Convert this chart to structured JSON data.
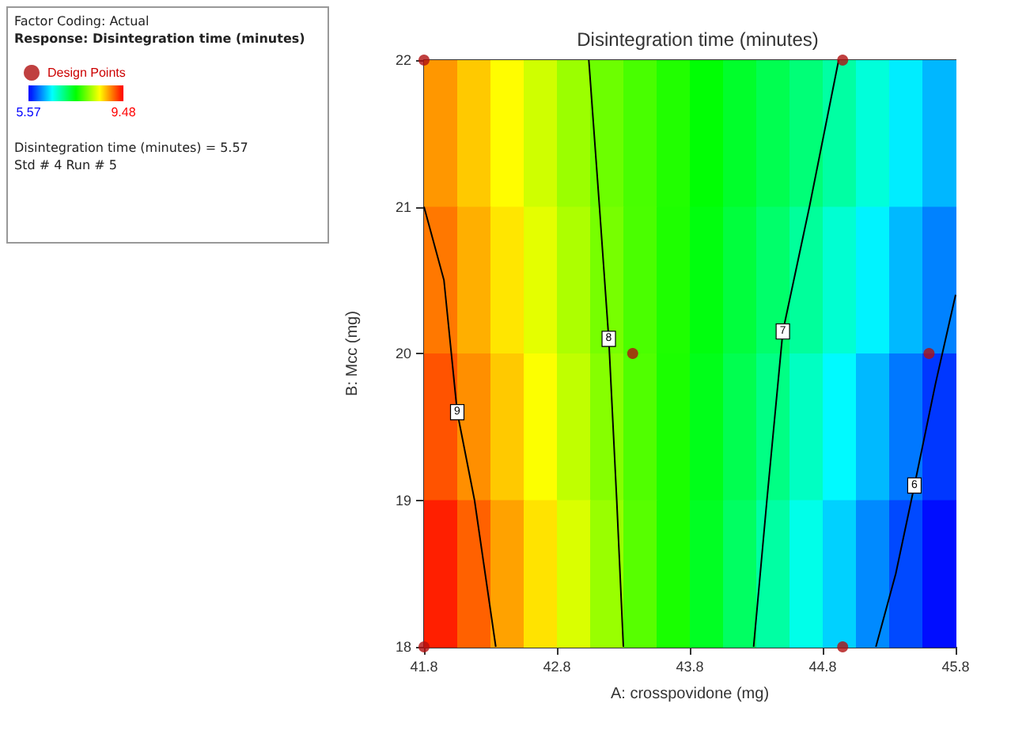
{
  "chart_data": {
    "type": "heatmap",
    "title": "Disintegration time (minutes)",
    "xlabel": "A: crosspovidone (mg)",
    "ylabel": "B: Mcc (mg)",
    "subtitle": "Factor Coding: Actual",
    "legend_title": "Response: Disintegration time (minutes)",
    "xlim": [
      41.8,
      45.8
    ],
    "xticks": [
      41.8,
      42.8,
      43.8,
      44.8,
      45.8
    ],
    "ylim": [
      18,
      22
    ],
    "yticks": [
      18,
      19,
      20,
      21,
      22
    ],
    "clim": [
      5.57,
      9.48
    ],
    "cticks": [
      5.57,
      9.48
    ],
    "cells": [
      [
        8.9,
        8.71,
        8.51,
        8.32,
        8.12,
        7.94,
        7.8,
        7.65,
        7.51,
        7.36,
        7.22,
        7.07,
        6.9,
        6.69,
        6.48,
        6.27
      ],
      [
        9.02,
        8.81,
        8.6,
        8.4,
        8.19,
        7.98,
        7.81,
        7.64,
        7.47,
        7.29,
        7.12,
        6.93,
        6.72,
        6.5,
        6.28,
        6.07
      ],
      [
        9.16,
        8.93,
        8.71,
        8.49,
        8.26,
        8.04,
        7.83,
        7.63,
        7.43,
        7.22,
        7.02,
        6.78,
        6.53,
        6.28,
        6.03,
        5.78
      ],
      [
        9.36,
        9.11,
        8.86,
        8.61,
        8.36,
        8.11,
        7.86,
        7.62,
        7.39,
        7.15,
        6.9,
        6.63,
        6.37,
        6.1,
        5.85,
        5.62
      ]
    ],
    "series": [
      {
        "name": "9",
        "type": "line",
        "color": "#000000",
        "x": [
          41.8,
          41.95,
          42.05,
          42.18,
          42.34
        ],
        "values": [
          21.0,
          20.5,
          19.6,
          19.0,
          18.0
        ]
      },
      {
        "name": "8",
        "type": "line",
        "color": "#000000",
        "x": [
          43.04,
          43.12,
          43.19,
          43.25,
          43.3
        ],
        "values": [
          22.0,
          21.0,
          20.1,
          19.0,
          18.0
        ]
      },
      {
        "name": "7",
        "type": "line",
        "color": "#000000",
        "x": [
          44.92,
          44.7,
          44.5,
          44.38,
          44.28
        ],
        "values": [
          22.0,
          21.0,
          20.15,
          19.0,
          18.0
        ]
      },
      {
        "name": "6",
        "type": "line",
        "color": "#000000",
        "x": [
          45.8,
          45.65,
          45.49,
          45.35,
          45.2
        ],
        "values": [
          20.4,
          19.8,
          19.1,
          18.5,
          18.0
        ]
      },
      {
        "name": "Design Points",
        "type": "scatter",
        "color": "#b01010",
        "x": [
          41.8,
          41.8,
          44.95,
          44.95,
          43.37,
          45.6
        ],
        "values": [
          22,
          18,
          22,
          18,
          20,
          20
        ]
      }
    ],
    "legend": "top left",
    "grid": false,
    "annotations": [
      "Disintegration time (minutes) = 5.57",
      "Std # 4 Run # 5"
    ]
  }
}
